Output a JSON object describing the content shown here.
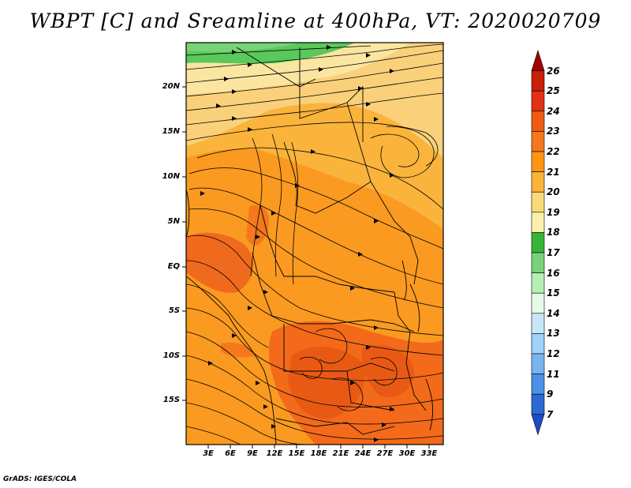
{
  "title": "WBPT [C] and Sreamline at 400hPa, VT: 2020020709",
  "credit": "GrADS: IGES/COLA",
  "lat_labels": [
    "20N",
    "15N",
    "10N",
    "5N",
    "EQ",
    "5S",
    "10S",
    "15S"
  ],
  "lon_labels": [
    "3E",
    "6E",
    "9E",
    "12E",
    "15E",
    "18E",
    "21E",
    "24E",
    "27E",
    "30E",
    "33E"
  ],
  "colorbar": {
    "labels": [
      "26",
      "25",
      "24",
      "23",
      "22",
      "21",
      "20",
      "19",
      "18",
      "17",
      "16",
      "15",
      "14",
      "13",
      "12",
      "11",
      "9",
      "7"
    ],
    "colors": [
      "#a50000",
      "#c81e0a",
      "#e13214",
      "#f05a14",
      "#f5781e",
      "#fa9614",
      "#fab43c",
      "#fada78",
      "#faf0aa",
      "#37b437",
      "#78d278",
      "#b4f0b4",
      "#e6fae6",
      "#c8e6fa",
      "#a0d2fa",
      "#78b4f0",
      "#4b91e6",
      "#2d69d2",
      "#1e4bc8"
    ]
  }
}
